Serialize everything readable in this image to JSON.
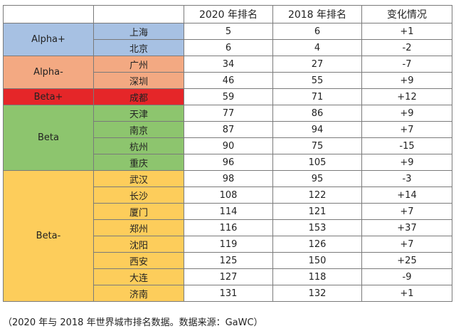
{
  "table": {
    "headers": [
      "",
      "",
      "2020 年排名",
      "2018 年排名",
      "变化情况"
    ],
    "groups": [
      {
        "tier": "Alpha+",
        "color": "#a7c1e3",
        "rows": [
          {
            "city": "上海",
            "rank2020": "5",
            "rank2018": "6",
            "change": "+1"
          },
          {
            "city": "北京",
            "rank2020": "6",
            "rank2018": "4",
            "change": "-2"
          }
        ]
      },
      {
        "tier": "Alpha-",
        "color": "#f3a982",
        "rows": [
          {
            "city": "广州",
            "rank2020": "34",
            "rank2018": "27",
            "change": "-7"
          },
          {
            "city": "深圳",
            "rank2020": "46",
            "rank2018": "55",
            "change": "+9"
          }
        ]
      },
      {
        "tier": "Beta+",
        "color": "#e52629",
        "rows": [
          {
            "city": "成都",
            "rank2020": "59",
            "rank2018": "71",
            "change": "+12"
          }
        ]
      },
      {
        "tier": "Beta",
        "color": "#8dc56e",
        "rows": [
          {
            "city": "天津",
            "rank2020": "77",
            "rank2018": "86",
            "change": "+9"
          },
          {
            "city": "南京",
            "rank2020": "87",
            "rank2018": "94",
            "change": "+7"
          },
          {
            "city": "杭州",
            "rank2020": "90",
            "rank2018": "75",
            "change": "-15"
          },
          {
            "city": "重庆",
            "rank2020": "96",
            "rank2018": "105",
            "change": "+9"
          }
        ]
      },
      {
        "tier": "Beta-",
        "color": "#fdcd5b",
        "rows": [
          {
            "city": "武汉",
            "rank2020": "98",
            "rank2018": "95",
            "change": "-3"
          },
          {
            "city": "长沙",
            "rank2020": "108",
            "rank2018": "122",
            "change": "+14"
          },
          {
            "city": "厦门",
            "rank2020": "114",
            "rank2018": "121",
            "change": "+7"
          },
          {
            "city": "郑州",
            "rank2020": "116",
            "rank2018": "153",
            "change": "+37"
          },
          {
            "city": "沈阳",
            "rank2020": "119",
            "rank2018": "126",
            "change": "+7"
          },
          {
            "city": "西安",
            "rank2020": "125",
            "rank2018": "150",
            "change": "+25"
          },
          {
            "city": "大连",
            "rank2020": "127",
            "rank2018": "118",
            "change": "-9"
          },
          {
            "city": "济南",
            "rank2020": "131",
            "rank2018": "132",
            "change": "+1"
          }
        ]
      }
    ]
  },
  "caption": "（2020 年与 2018 年世界城市排名数据。数据来源：GaWC）"
}
